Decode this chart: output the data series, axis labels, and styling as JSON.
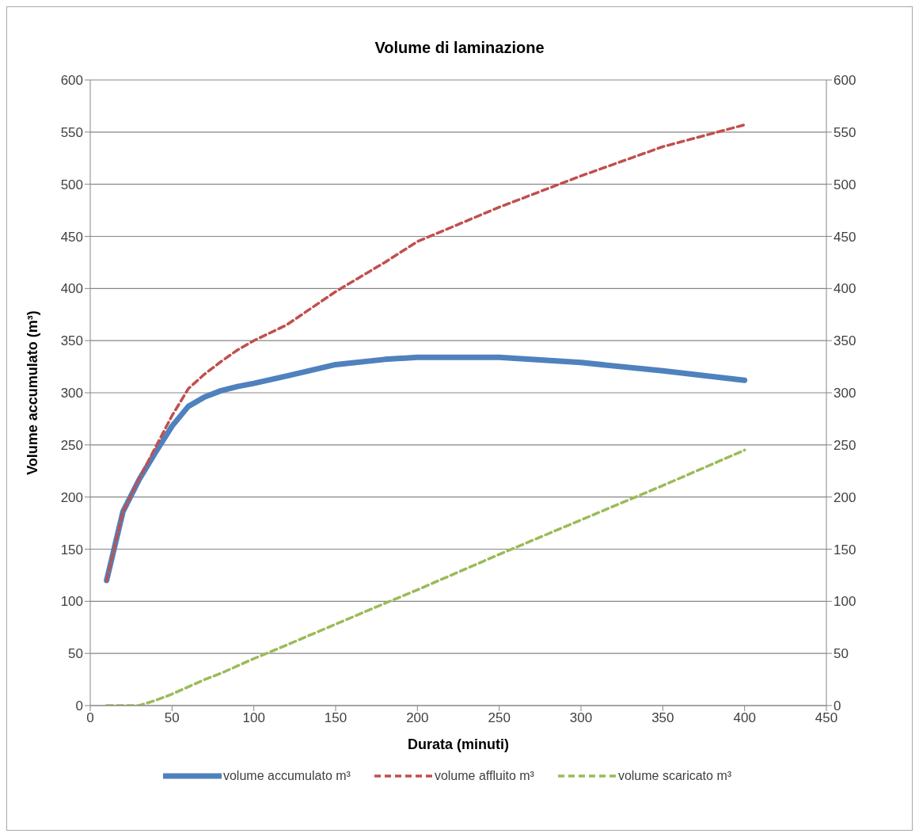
{
  "chart_data": {
    "type": "line",
    "title": "Volume di laminazione",
    "xlabel": "Durata (minuti)",
    "ylabel": "Volume accumulato (m³)",
    "x": [
      10,
      20,
      30,
      40,
      50,
      60,
      70,
      80,
      90,
      100,
      120,
      150,
      180,
      200,
      250,
      300,
      350,
      400
    ],
    "series": [
      {
        "name": "volume accumulato m³",
        "color": "#4f81bd",
        "line_style": "solid",
        "values": [
          120,
          186,
          217,
          243,
          268,
          287,
          296,
          302,
          306,
          309,
          316,
          327,
          332,
          334,
          334,
          329,
          321,
          312
        ]
      },
      {
        "name": "volume affluito m³",
        "color": "#c0504d",
        "line_style": "dashed",
        "values": [
          120,
          186,
          218,
          248,
          278,
          304,
          318,
          330,
          341,
          350,
          365,
          397,
          425,
          445,
          478,
          508,
          536,
          557
        ]
      },
      {
        "name": "volume scaricato m³",
        "color": "#9bbb59",
        "line_style": "dashed",
        "values": [
          0,
          0,
          0,
          5,
          11,
          18,
          25,
          31,
          38,
          45,
          58,
          78,
          98,
          111,
          145,
          178,
          211,
          245
        ]
      }
    ],
    "xlim": [
      0,
      450
    ],
    "xticks": [
      0,
      50,
      100,
      150,
      200,
      250,
      300,
      350,
      400,
      450
    ],
    "ylim": [
      0,
      600
    ],
    "yticks": [
      0,
      50,
      100,
      150,
      200,
      250,
      300,
      350,
      400,
      450,
      500,
      550,
      600
    ],
    "y2lim": [
      0,
      600
    ],
    "y2ticks": [
      0,
      50,
      100,
      150,
      200,
      250,
      300,
      350,
      400,
      450,
      500,
      550,
      600
    ],
    "grid": "y",
    "legend": "bottom",
    "marker": "none"
  }
}
